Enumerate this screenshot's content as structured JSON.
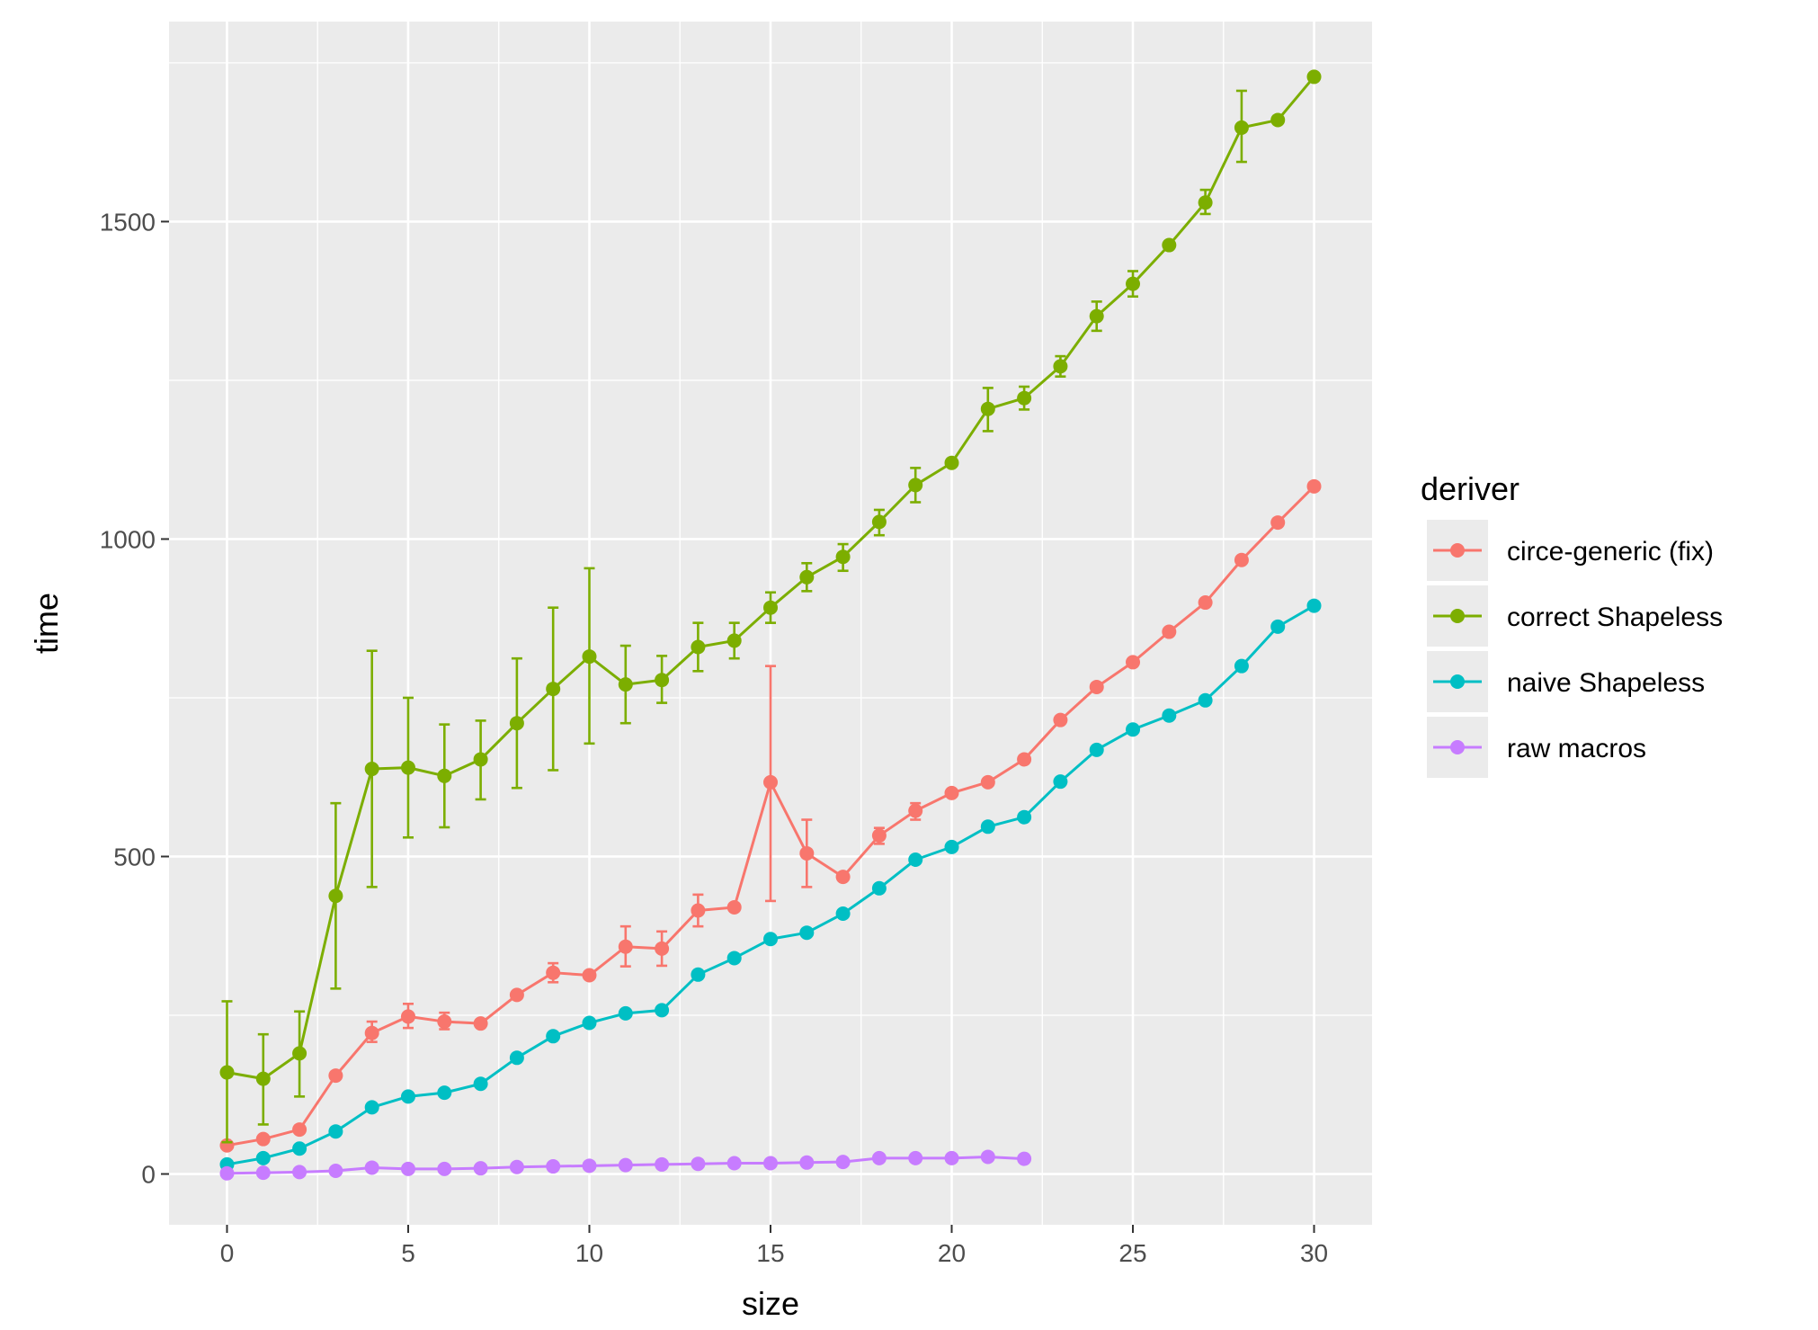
{
  "chart_data": {
    "type": "line",
    "xlabel": "size",
    "ylabel": "time",
    "xlim": [
      -1.6,
      31.6
    ],
    "ylim": [
      -80,
      1815
    ],
    "x_ticks": [
      0,
      5,
      10,
      15,
      20,
      25,
      30
    ],
    "x_tick_labels": [
      "0",
      "5",
      "10",
      "15",
      "20",
      "25",
      "30"
    ],
    "y_ticks": [
      0,
      500,
      1000,
      1500
    ],
    "y_tick_labels": [
      "0",
      "500",
      "1000",
      "1500"
    ],
    "grid": true,
    "background": "#EBEBEB",
    "legend": {
      "title": "deriver",
      "position": "right"
    },
    "series": [
      {
        "name": "circe-generic (fix)",
        "color": "#F8766D",
        "x": [
          0,
          1,
          2,
          3,
          4,
          5,
          6,
          7,
          8,
          9,
          10,
          11,
          12,
          13,
          14,
          15,
          16,
          17,
          18,
          19,
          20,
          21,
          22,
          23,
          24,
          25,
          26,
          27,
          28,
          29,
          30
        ],
        "values": [
          45,
          55,
          70,
          155,
          222,
          248,
          240,
          237,
          282,
          317,
          313,
          358,
          355,
          415,
          420,
          617,
          505,
          468,
          533,
          572,
          600,
          617,
          653,
          715,
          767,
          806,
          854,
          900,
          967,
          1026,
          1083
        ],
        "err": [
          null,
          null,
          null,
          null,
          [
            208,
            240
          ],
          [
            230,
            268
          ],
          [
            228,
            254
          ],
          null,
          null,
          [
            302,
            332
          ],
          null,
          [
            327,
            390
          ],
          [
            328,
            382
          ],
          [
            390,
            440
          ],
          null,
          [
            430,
            800
          ],
          [
            452,
            558
          ],
          null,
          [
            520,
            545
          ],
          [
            558,
            584
          ],
          null,
          null,
          null,
          null,
          null,
          null,
          null,
          null,
          null,
          null,
          null
        ]
      },
      {
        "name": "correct Shapeless",
        "color": "#7CAE00",
        "x": [
          0,
          1,
          2,
          3,
          4,
          5,
          6,
          7,
          8,
          9,
          10,
          11,
          12,
          13,
          14,
          15,
          16,
          17,
          18,
          19,
          20,
          21,
          22,
          23,
          24,
          25,
          26,
          27,
          28,
          29,
          30
        ],
        "values": [
          160,
          150,
          190,
          438,
          638,
          640,
          627,
          653,
          710,
          764,
          815,
          771,
          778,
          830,
          840,
          892,
          940,
          972,
          1027,
          1085,
          1120,
          1205,
          1222,
          1272,
          1351,
          1402,
          1463,
          1530,
          1648,
          1660,
          1728
        ],
        "err": [
          [
            50,
            272
          ],
          [
            78,
            220
          ],
          [
            122,
            256
          ],
          [
            292,
            584
          ],
          [
            452,
            824
          ],
          [
            530,
            750
          ],
          [
            546,
            708
          ],
          [
            590,
            714
          ],
          [
            608,
            812
          ],
          [
            636,
            892
          ],
          [
            678,
            954
          ],
          [
            710,
            832
          ],
          [
            742,
            816
          ],
          [
            792,
            868
          ],
          [
            812,
            868
          ],
          [
            868,
            916
          ],
          [
            918,
            962
          ],
          [
            950,
            992
          ],
          [
            1006,
            1046
          ],
          [
            1058,
            1112
          ],
          null,
          [
            1170,
            1238
          ],
          [
            1204,
            1240
          ],
          [
            1256,
            1288
          ],
          [
            1328,
            1374
          ],
          [
            1382,
            1422
          ],
          null,
          [
            1512,
            1550
          ],
          [
            1594,
            1706
          ],
          null,
          null
        ]
      },
      {
        "name": "naive Shapeless",
        "color": "#00BFC4",
        "x": [
          0,
          1,
          2,
          3,
          4,
          5,
          6,
          7,
          8,
          9,
          10,
          11,
          12,
          13,
          14,
          15,
          16,
          17,
          18,
          19,
          20,
          21,
          22,
          23,
          24,
          25,
          26,
          27,
          28,
          29,
          30
        ],
        "values": [
          15,
          25,
          40,
          67,
          105,
          122,
          128,
          142,
          183,
          217,
          238,
          253,
          258,
          314,
          340,
          370,
          380,
          410,
          450,
          495,
          515,
          547,
          562,
          618,
          668,
          700,
          722,
          746,
          800,
          862,
          895
        ],
        "err": null
      },
      {
        "name": "raw macros",
        "color": "#C77CFF",
        "x": [
          0,
          1,
          2,
          3,
          4,
          5,
          6,
          7,
          8,
          9,
          10,
          11,
          12,
          13,
          14,
          15,
          16,
          17,
          18,
          19,
          20,
          21,
          22
        ],
        "values": [
          1,
          2,
          3,
          5,
          10,
          8,
          8,
          9,
          11,
          12,
          13,
          14,
          15,
          16,
          17,
          17,
          18,
          19,
          25,
          25,
          25,
          27,
          24
        ],
        "err": null
      }
    ]
  }
}
